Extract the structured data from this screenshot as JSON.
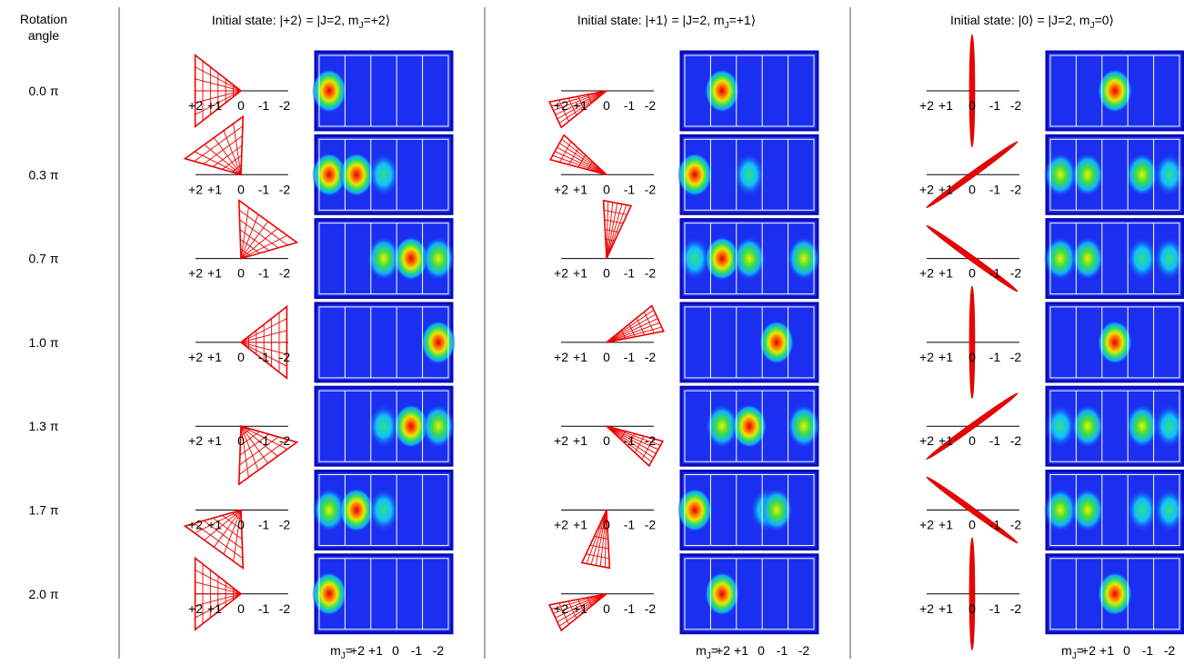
{
  "row_header": [
    "Rotation",
    "angle"
  ],
  "rows": [
    {
      "value": 0.0,
      "label": "0.0 π"
    },
    {
      "value": 0.3,
      "label": "0.3 π"
    },
    {
      "value": 0.7,
      "label": "0.7 π"
    },
    {
      "value": 1.0,
      "label": "1.0 π"
    },
    {
      "value": 1.3,
      "label": "1.3 π"
    },
    {
      "value": 1.7,
      "label": "1.7 π"
    },
    {
      "value": 2.0,
      "label": "2.0 π"
    }
  ],
  "columns": [
    {
      "title": {
        "prefix": "Initial state: |+2⟩ = |J=2, m",
        "sub": "J",
        "suffix": "=+2⟩"
      }
    },
    {
      "title": {
        "prefix": "Initial state: |+1⟩ = |J=2, m",
        "sub": "J",
        "suffix": "=+1⟩"
      }
    },
    {
      "title": {
        "prefix": "Initial state: |0⟩ = |J=2, m",
        "sub": "J",
        "suffix": "=0⟩"
      }
    }
  ],
  "ladder_labels": [
    "+2",
    "+1",
    "0",
    "-1",
    "-2"
  ],
  "axis_label": {
    "main": "m",
    "sub": "J",
    "suffix": "="
  }
}
